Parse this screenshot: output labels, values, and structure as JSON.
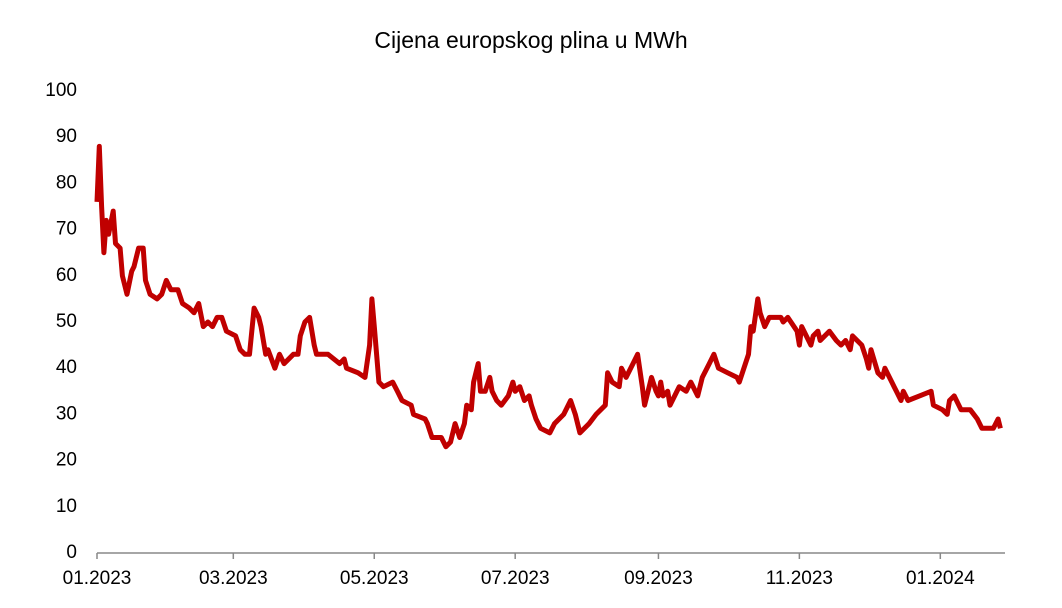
{
  "chart_data": {
    "type": "line",
    "title": "Cijena europskog plina u MWh",
    "x": [
      0,
      1,
      2,
      3,
      4,
      5,
      7,
      8,
      10,
      11,
      13,
      15,
      16,
      18,
      20,
      21,
      23,
      26,
      28,
      30,
      32,
      35,
      37,
      40,
      42,
      44,
      46,
      48,
      50,
      52,
      54,
      56,
      60,
      62,
      64,
      66,
      68,
      70,
      71,
      73,
      74,
      77,
      79,
      81,
      85,
      87,
      88,
      90,
      92,
      94,
      95,
      100,
      105,
      107,
      108,
      113,
      116,
      118,
      119,
      120,
      122,
      124,
      128,
      130,
      132,
      136,
      137,
      142,
      143,
      145,
      149,
      151,
      153,
      155,
      157,
      159,
      160,
      162,
      163,
      165,
      166,
      168,
      170,
      171,
      173,
      175,
      178,
      180,
      181,
      183,
      185,
      187,
      188,
      190,
      192,
      196,
      198,
      202,
      205,
      207,
      209,
      213,
      216,
      220,
      221,
      223,
      226,
      227,
      229,
      232,
      234,
      236,
      237,
      240,
      242,
      243,
      244,
      245,
      247,
      248,
      252,
      255,
      257,
      260,
      262,
      265,
      267,
      269,
      273,
      277,
      278,
      280,
      282,
      283,
      284,
      286,
      287,
      289,
      291,
      294,
      296,
      297,
      299,
      303,
      304,
      305,
      309,
      310,
      312,
      313,
      317,
      320,
      322,
      324,
      326,
      327,
      331,
      333,
      334,
      335,
      338,
      340,
      341,
      345,
      346,
      348,
      349,
      351,
      356,
      361,
      362,
      366,
      368,
      369,
      371,
      374,
      378,
      381,
      383,
      388,
      390,
      391
    ],
    "series": [
      {
        "name": "Cijena",
        "color": "#c00000",
        "values": [
          76,
          88,
          75,
          65,
          72,
          69,
          74,
          67,
          66,
          60,
          56,
          61,
          62,
          66,
          66,
          59,
          56,
          55,
          56,
          59,
          57,
          57,
          54,
          53,
          52,
          54,
          49,
          50,
          49,
          51,
          51,
          48,
          47,
          44,
          43,
          43,
          53,
          51,
          49,
          43,
          44,
          40,
          43,
          41,
          43,
          43,
          47,
          50,
          51,
          45,
          43,
          43,
          41,
          42,
          40,
          39,
          38,
          45,
          55,
          49,
          37,
          36,
          37,
          35,
          33,
          32,
          30,
          29,
          28,
          25,
          25,
          23,
          24,
          28,
          25,
          28,
          32,
          31,
          37,
          41,
          35,
          35,
          38,
          35,
          33,
          32,
          34,
          37,
          35,
          36,
          33,
          34,
          32,
          29,
          27,
          26,
          28,
          30,
          33,
          30,
          26,
          28,
          30,
          32,
          39,
          37,
          36,
          40,
          38,
          41,
          43,
          36,
          32,
          38,
          35,
          34,
          37,
          34,
          35,
          32,
          36,
          35,
          37,
          34,
          38,
          41,
          43,
          40,
          39,
          38,
          37,
          40,
          43,
          49,
          48,
          55,
          52,
          49,
          51,
          51,
          51,
          50,
          51,
          48,
          45,
          49,
          45,
          47,
          48,
          46,
          48,
          46,
          45,
          46,
          44,
          47,
          45,
          42,
          40,
          44,
          39,
          38,
          40,
          36,
          35,
          33,
          35,
          33,
          34,
          35,
          32,
          31,
          30,
          33,
          34,
          31,
          31,
          29,
          27,
          27,
          29,
          27
        ]
      }
    ],
    "xlim": [
      0,
      393
    ],
    "xticks": [
      {
        "value": 0,
        "label": "01.2023"
      },
      {
        "value": 59,
        "label": "03.2023"
      },
      {
        "value": 120,
        "label": "05.2023"
      },
      {
        "value": 181,
        "label": "07.2023"
      },
      {
        "value": 243,
        "label": "09.2023"
      },
      {
        "value": 304,
        "label": "11.2023"
      },
      {
        "value": 365,
        "label": "01.2024"
      }
    ],
    "ylim": [
      0,
      100
    ],
    "yticks": [
      0,
      10,
      20,
      30,
      40,
      50,
      60,
      70,
      80,
      90,
      100
    ],
    "grid": false
  }
}
